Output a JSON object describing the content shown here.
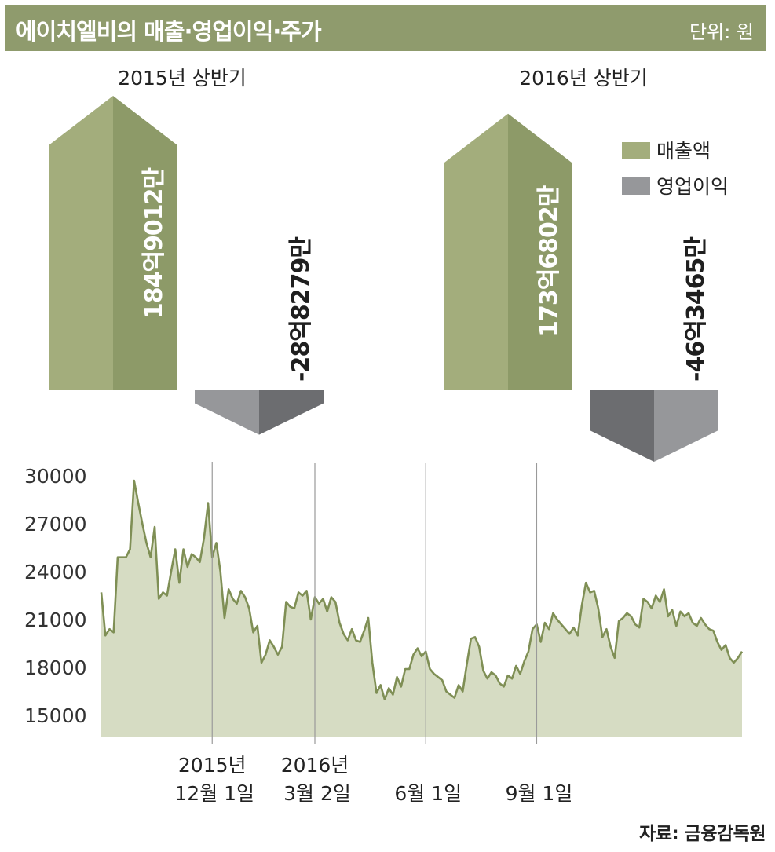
{
  "header": {
    "title": "에이치엘비의 매출·영업이익·주가",
    "unit": "단위: 원"
  },
  "source": "자료: 금융감독원",
  "colors": {
    "header_bg": "#8f9b6d",
    "revenue_light": "#a3ad7c",
    "revenue_dark": "#8d9a68",
    "profit_light": "#96979a",
    "profit_dark": "#6c6d70",
    "area_fill": "#d6dcc3",
    "line": "#7f8f55"
  },
  "chart_data": [
    {
      "type": "bar",
      "categories": [
        "2015년 상반기",
        "2016년 상반기"
      ],
      "series": [
        {
          "name": "매출액",
          "values": [
            18490120000,
            17368020000
          ],
          "labels": [
            "184억9012만",
            "173억6802만"
          ]
        },
        {
          "name": "영업이익",
          "values": [
            -2882790000,
            -4634650000
          ],
          "labels": [
            "-28억8279만",
            "-46억3465만"
          ]
        }
      ],
      "legend": [
        "매출액",
        "영업이익"
      ],
      "legend_position": "top-right"
    },
    {
      "type": "area",
      "yticks": [
        30000,
        27000,
        24000,
        21000,
        18000,
        15000
      ],
      "ylim": [
        14500,
        30500
      ],
      "x_labels": [
        {
          "line1": "2015년",
          "line2": "12월 1일",
          "index": 27
        },
        {
          "line1": "2016년",
          "line2": "3월 2일",
          "index": 52
        },
        {
          "line1": "",
          "line2": "6월 1일",
          "index": 79
        },
        {
          "line1": "",
          "line2": "9월 1일",
          "index": 106
        }
      ],
      "values": [
        22700,
        20000,
        20400,
        20200,
        24900,
        24900,
        24900,
        25400,
        29700,
        28300,
        27000,
        25800,
        24900,
        26800,
        22300,
        22700,
        22500,
        24000,
        25400,
        23300,
        25400,
        24300,
        25100,
        24900,
        24600,
        26100,
        28300,
        24900,
        25800,
        24000,
        21100,
        22900,
        22300,
        22000,
        22800,
        22400,
        21700,
        20200,
        20600,
        18300,
        18800,
        19700,
        19300,
        18800,
        19300,
        22100,
        21800,
        21700,
        22700,
        22500,
        22800,
        21000,
        22400,
        22000,
        22300,
        21500,
        22400,
        22100,
        20800,
        20100,
        19700,
        20400,
        19700,
        19600,
        20300,
        21100,
        18300,
        16400,
        16900,
        16000,
        16700,
        16300,
        17400,
        16800,
        17900,
        17900,
        18800,
        19200,
        18700,
        19000,
        17900,
        17600,
        17400,
        17200,
        16500,
        16300,
        16100,
        16900,
        16500,
        18200,
        19800,
        19900,
        19300,
        17800,
        17300,
        17700,
        17500,
        17000,
        16800,
        17500,
        17300,
        18100,
        17600,
        18400,
        19000,
        20400,
        20700,
        19600,
        20800,
        20400,
        21400,
        21000,
        20700,
        20400,
        20100,
        20500,
        20000,
        21900,
        23300,
        22700,
        22800,
        21700,
        19900,
        20400,
        19300,
        18600,
        20900,
        21100,
        21400,
        21200,
        20700,
        20500,
        22300,
        22100,
        21700,
        22500,
        22100,
        22900,
        21200,
        21600,
        20600,
        21500,
        21200,
        21400,
        20800,
        20600,
        21100,
        20700,
        20400,
        20300,
        19600,
        19100,
        19400,
        18600,
        18300,
        18600,
        19000
      ],
      "fill_color": "#d6dcc3",
      "line_color": "#7f8f55"
    }
  ]
}
